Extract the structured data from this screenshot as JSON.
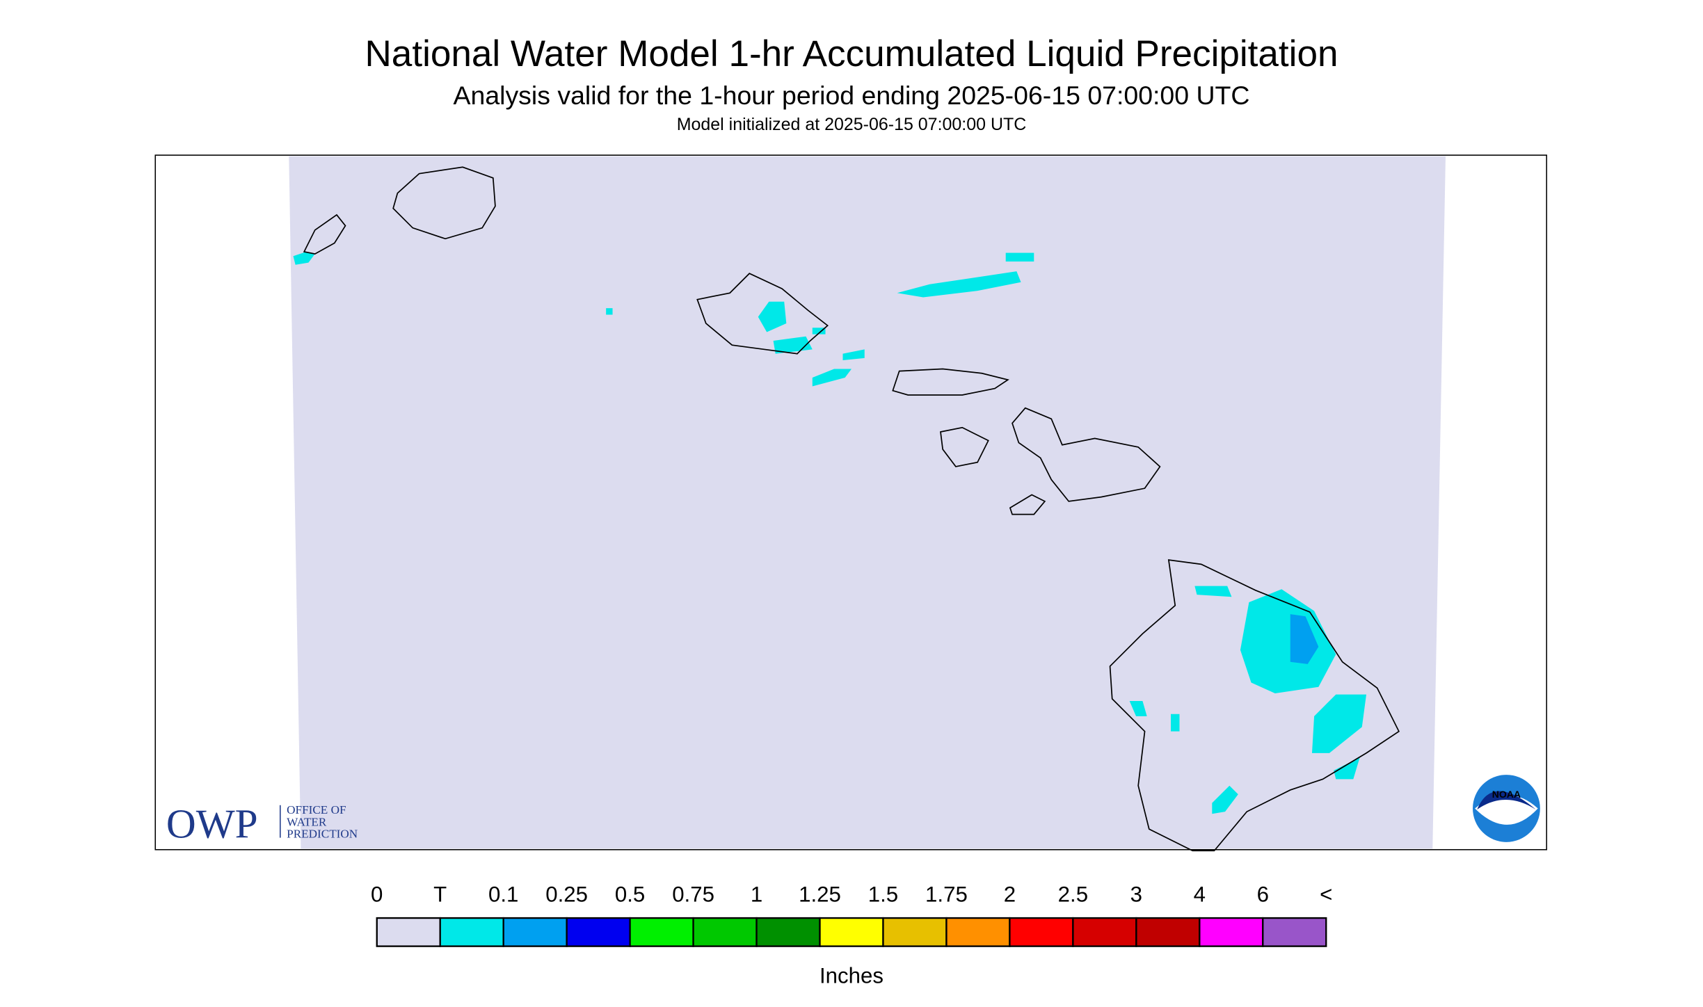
{
  "header": {
    "title": "National Water Model 1-hr Accumulated Liquid Precipitation",
    "subtitle": "Analysis valid for the 1-hour period ending 2025-06-15 07:00:00 UTC",
    "init": "Model initialized at 2025-06-15 07:00:00 UTC"
  },
  "legend": {
    "labels": [
      "0",
      "T",
      "0.1",
      "0.25",
      "0.5",
      "0.75",
      "1",
      "1.25",
      "1.5",
      "1.75",
      "2",
      "2.5",
      "3",
      "4",
      "6",
      "<"
    ],
    "colors": [
      "#dcdcef",
      "#00e8e8",
      "#00a0f0",
      "#0000f0",
      "#00f000",
      "#00c800",
      "#009000",
      "#ffff00",
      "#e7c000",
      "#ff9000",
      "#ff0000",
      "#d60000",
      "#c00000",
      "#ff00ff",
      "#9955c9"
    ],
    "unit": "Inches"
  },
  "logos": {
    "owp": "OWP",
    "owp_lines": [
      "OFFICE OF",
      "WATER",
      "PREDICTION"
    ],
    "noaa": "NOAA"
  }
}
